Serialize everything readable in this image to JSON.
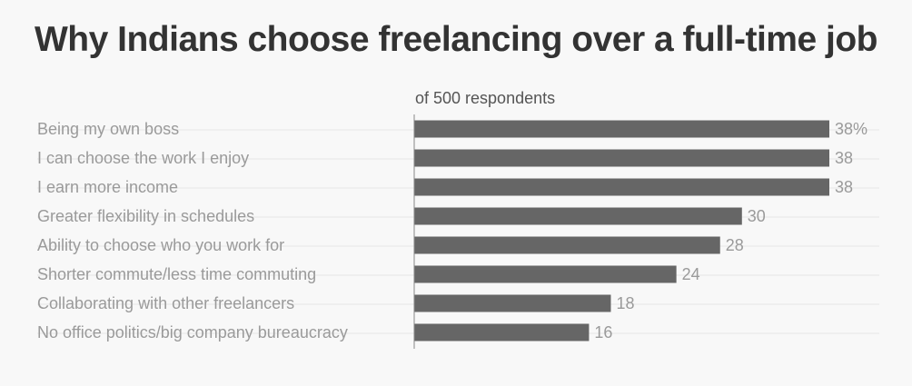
{
  "chart_data": {
    "type": "bar",
    "orientation": "horizontal",
    "title": "Why Indians choose freelancing over a full-time job",
    "subtitle": "of 500 respondents",
    "categories": [
      "Being my own boss",
      "I can choose the work I enjoy",
      "I earn more income",
      "Greater flexibility in schedules",
      "Ability to choose who you work for",
      "Shorter commute/less time commuting",
      "Collaborating with other freelancers",
      "No office politics/big company bureaucracy"
    ],
    "values": [
      38,
      38,
      38,
      30,
      28,
      24,
      18,
      16
    ],
    "value_labels": [
      "38%",
      "38",
      "38",
      "30",
      "28",
      "24",
      "18",
      "16"
    ],
    "xlim": [
      0,
      38
    ],
    "grid": true,
    "legend": "none",
    "colors": {
      "bar": "#666666",
      "text": "#9a9a9a",
      "title": "#333333",
      "subtitle": "#555555",
      "grid": "#e6e6e6",
      "axis": "#888888",
      "background": "#f8f8f8"
    }
  }
}
